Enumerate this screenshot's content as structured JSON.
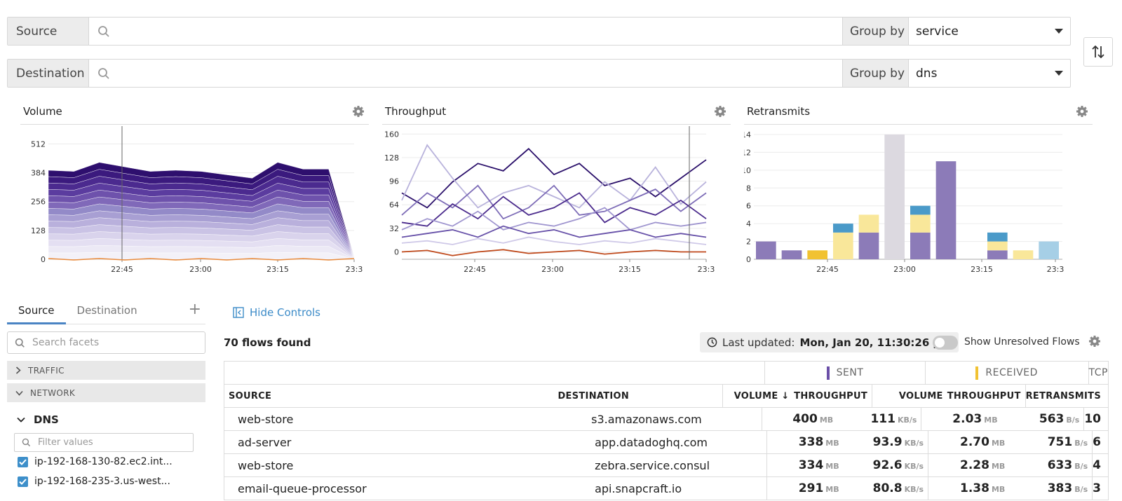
{
  "query": {
    "source_label": "Source",
    "destination_label": "Destination",
    "source_group_label": "Group by",
    "source_group_value": "service",
    "destination_group_label": "Group by",
    "destination_group_value": "dns"
  },
  "colors": {
    "accent": "#3c8bc8",
    "sent": "#6b4fa8",
    "received": "#f1c232",
    "purple": "#8c7bb8",
    "yellow": "#f9e79a",
    "blue": "#4a9ac9",
    "lightblue": "#a6cfe6",
    "gray": "#dcd9e0",
    "orange": "#e8893a"
  },
  "charts": {
    "volume": {
      "title": "Volume"
    },
    "throughput": {
      "title": "Throughput"
    },
    "retransmits": {
      "title": "Retransmits"
    }
  },
  "chart_data": [
    {
      "type": "area",
      "title": "Volume",
      "x": [
        "22:30",
        "22:35",
        "22:40",
        "22:45",
        "22:50",
        "22:55",
        "23:00",
        "23:05",
        "23:10",
        "23:15",
        "23:20",
        "23:25",
        "23:30"
      ],
      "x_ticks": [
        "22:45",
        "23:00",
        "23:15",
        "23:3"
      ],
      "y_ticks": [
        0,
        128,
        256,
        384,
        512
      ],
      "ylim": [
        0,
        560
      ],
      "series": [
        {
          "values": [
            395,
            390,
            430,
            410,
            390,
            395,
            390,
            375,
            360,
            430,
            400,
            400,
            10
          ]
        }
      ]
    },
    {
      "type": "line",
      "title": "Throughput",
      "x_ticks": [
        "22:45",
        "23:00",
        "23:15",
        "23:3"
      ],
      "y_ticks": [
        0,
        32,
        64,
        96,
        128,
        160
      ],
      "ylim": [
        -10,
        165
      ],
      "series": [
        {
          "values": [
            80,
            60,
            95,
            120,
            110,
            140,
            105,
            120,
            90,
            100,
            75,
            100,
            125
          ]
        },
        {
          "values": [
            70,
            145,
            100,
            60,
            80,
            90,
            75,
            60,
            95,
            70,
            115,
            65,
            95
          ]
        },
        {
          "values": [
            50,
            80,
            60,
            90,
            45,
            60,
            90,
            50,
            55,
            70,
            85,
            55,
            80
          ]
        },
        {
          "values": [
            40,
            35,
            65,
            45,
            75,
            50,
            60,
            80,
            40,
            60,
            50,
            70,
            45
          ]
        },
        {
          "values": [
            30,
            45,
            35,
            55,
            30,
            40,
            35,
            45,
            60,
            30,
            40,
            35,
            40
          ]
        },
        {
          "values": [
            20,
            25,
            30,
            20,
            35,
            25,
            30,
            20,
            25,
            30,
            20,
            25,
            20
          ]
        },
        {
          "values": [
            12,
            15,
            10,
            18,
            12,
            20,
            14,
            10,
            15,
            12,
            18,
            14,
            10
          ]
        },
        {
          "values": [
            0,
            2,
            -5,
            0,
            3,
            -2,
            0,
            2,
            -3,
            0,
            2,
            0,
            0
          ]
        }
      ]
    },
    {
      "type": "bar",
      "title": "Retransmits",
      "stacked": true,
      "x_ticks": [
        "22:45",
        "23:00",
        "23:15",
        "23:3"
      ],
      "y_ticks": [
        0,
        2,
        4,
        6,
        8,
        10,
        12,
        14
      ],
      "ylim": [
        0,
        14
      ],
      "bars": [
        {
          "purple": 2,
          "yellow": 0,
          "blue": 0,
          "gold": 0,
          "gray": 0,
          "lightblue": 0
        },
        {
          "purple": 1,
          "yellow": 0,
          "blue": 0,
          "gold": 0,
          "gray": 0,
          "lightblue": 0
        },
        {
          "purple": 0,
          "yellow": 0,
          "blue": 0,
          "gold": 1,
          "gray": 0,
          "lightblue": 0
        },
        {
          "purple": 0,
          "yellow": 3,
          "blue": 1,
          "gold": 0,
          "gray": 0,
          "lightblue": 0
        },
        {
          "purple": 3,
          "yellow": 2,
          "blue": 0,
          "gold": 0,
          "gray": 0,
          "lightblue": 0
        },
        {
          "purple": 0,
          "yellow": 0,
          "blue": 0,
          "gold": 0,
          "gray": 14,
          "lightblue": 0
        },
        {
          "purple": 3,
          "yellow": 2,
          "blue": 1,
          "gold": 0,
          "gray": 0,
          "lightblue": 0
        },
        {
          "purple": 11,
          "yellow": 0,
          "blue": 0,
          "gold": 0,
          "gray": 0,
          "lightblue": 0
        },
        {
          "purple": 0,
          "yellow": 0,
          "blue": 0,
          "gold": 0,
          "gray": 0,
          "lightblue": 0
        },
        {
          "purple": 1,
          "yellow": 1,
          "blue": 1,
          "gold": 0,
          "gray": 0,
          "lightblue": 0
        },
        {
          "purple": 0,
          "yellow": 1,
          "blue": 0,
          "gold": 0,
          "gray": 0,
          "lightblue": 0
        },
        {
          "purple": 0,
          "yellow": 0,
          "blue": 0,
          "gold": 0,
          "gray": 0,
          "lightblue": 2
        }
      ]
    }
  ],
  "facets": {
    "tabs": [
      "Source",
      "Destination"
    ],
    "search_placeholder": "Search facets",
    "sections": [
      "TRAFFIC",
      "NETWORK"
    ],
    "dns_title": "DNS",
    "filter_placeholder": "Filter values",
    "items": [
      "ip-192-168-130-82.ec2.int...",
      "ip-192-168-235-3.us-west..."
    ]
  },
  "controls": {
    "hide_label": "Hide Controls",
    "flows_found": "70 flows found",
    "last_updated_label": "Last updated:",
    "last_updated_value": "Mon, Jan 20, 11:30:26 pm",
    "show_unresolved": "Show Unresolved Flows"
  },
  "table": {
    "groups": {
      "sent": "SENT",
      "received": "RECEIVED",
      "tcp": "TCP"
    },
    "headers": {
      "source": "SOURCE",
      "destination": "DESTINATION",
      "sent_volume": "VOLUME ↓",
      "sent_throughput": "THROUGHPUT",
      "recv_volume": "VOLUME",
      "recv_throughput": "THROUGHPUT",
      "retransmits": "RETRANSMITS"
    },
    "rows": [
      {
        "source": "web-store",
        "destination": "s3.amazonaws.com",
        "sv": "400",
        "svu": "MB",
        "st": "111",
        "stu": "KB/s",
        "rv": "2.03",
        "rvu": "MB",
        "rt": "563",
        "rtu": "B/s",
        "tr": "10"
      },
      {
        "source": "ad-server",
        "destination": "app.datadoghq.com",
        "sv": "338",
        "svu": "MB",
        "st": "93.9",
        "stu": "KB/s",
        "rv": "2.70",
        "rvu": "MB",
        "rt": "751",
        "rtu": "B/s",
        "tr": "6"
      },
      {
        "source": "web-store",
        "destination": "zebra.service.consul",
        "sv": "334",
        "svu": "MB",
        "st": "92.6",
        "stu": "KB/s",
        "rv": "2.28",
        "rvu": "MB",
        "rt": "633",
        "rtu": "B/s",
        "tr": "4"
      },
      {
        "source": "email-queue-processor",
        "destination": "api.snapcraft.io",
        "sv": "291",
        "svu": "MB",
        "st": "80.8",
        "stu": "KB/s",
        "rv": "1.38",
        "rvu": "MB",
        "rt": "383",
        "rtu": "B/s",
        "tr": "3"
      }
    ]
  }
}
